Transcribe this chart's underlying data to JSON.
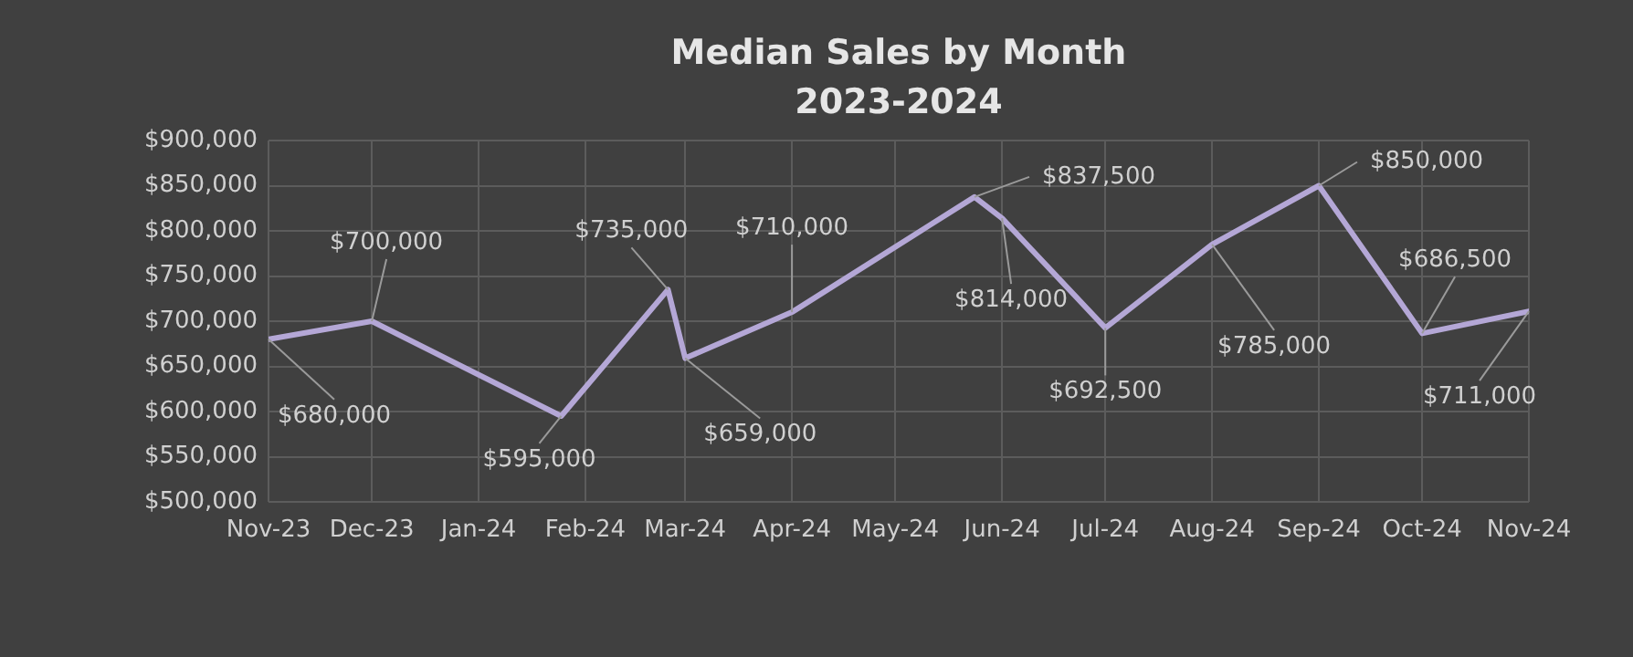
{
  "chart_data": {
    "type": "line",
    "title": "Median Sales by Month",
    "subtitle": "2023-2024",
    "x": [
      "2023-11-01",
      "2023-12-01",
      "2024-01-25",
      "2024-02-25",
      "2024-03-01",
      "2024-04-01",
      "2024-05-24",
      "2024-06-01",
      "2024-07-01",
      "2024-08-01",
      "2024-09-01",
      "2024-10-01",
      "2024-11-01"
    ],
    "series": [
      {
        "color": "#b4a7d6",
        "values": [
          680000,
          700000,
          595000,
          735000,
          659000,
          710000,
          837500,
          814000,
          692500,
          785000,
          850000,
          686500,
          711000
        ],
        "value_labels": [
          "$680,000",
          "$700,000",
          "$595,000",
          "$735,000",
          "$659,000",
          "$710,000",
          "$837,500",
          "$814,000",
          "$692,500",
          "$785,000",
          "$850,000",
          "$686,500",
          "$711,000"
        ]
      }
    ],
    "xlim": [
      "2023-11-01",
      "2024-11-01"
    ],
    "xticks": [
      {
        "value": "2023-11-01",
        "label": "Nov-23"
      },
      {
        "value": "2023-12-01",
        "label": "Dec-23"
      },
      {
        "value": "2024-01-01",
        "label": "Jan-24"
      },
      {
        "value": "2024-02-01",
        "label": "Feb-24"
      },
      {
        "value": "2024-03-01",
        "label": "Mar-24"
      },
      {
        "value": "2024-04-01",
        "label": "Apr-24"
      },
      {
        "value": "2024-05-01",
        "label": "May-24"
      },
      {
        "value": "2024-06-01",
        "label": "Jun-24"
      },
      {
        "value": "2024-07-01",
        "label": "Jul-24"
      },
      {
        "value": "2024-08-01",
        "label": "Aug-24"
      },
      {
        "value": "2024-09-01",
        "label": "Sep-24"
      },
      {
        "value": "2024-10-01",
        "label": "Oct-24"
      },
      {
        "value": "2024-11-01",
        "label": "Nov-24"
      }
    ],
    "ylim": [
      500000,
      900000
    ],
    "yticks": [
      {
        "value": 500000,
        "label": "$500,000"
      },
      {
        "value": 550000,
        "label": "$550,000"
      },
      {
        "value": 600000,
        "label": "$600,000"
      },
      {
        "value": 650000,
        "label": "$650,000"
      },
      {
        "value": 700000,
        "label": "$700,000"
      },
      {
        "value": 750000,
        "label": "$750,000"
      },
      {
        "value": 800000,
        "label": "$800,000"
      },
      {
        "value": 850000,
        "label": "$850,000"
      },
      {
        "value": 900000,
        "label": "$900,000"
      }
    ],
    "grid": true,
    "marker": "none",
    "line_style": "solid",
    "legend": false
  }
}
